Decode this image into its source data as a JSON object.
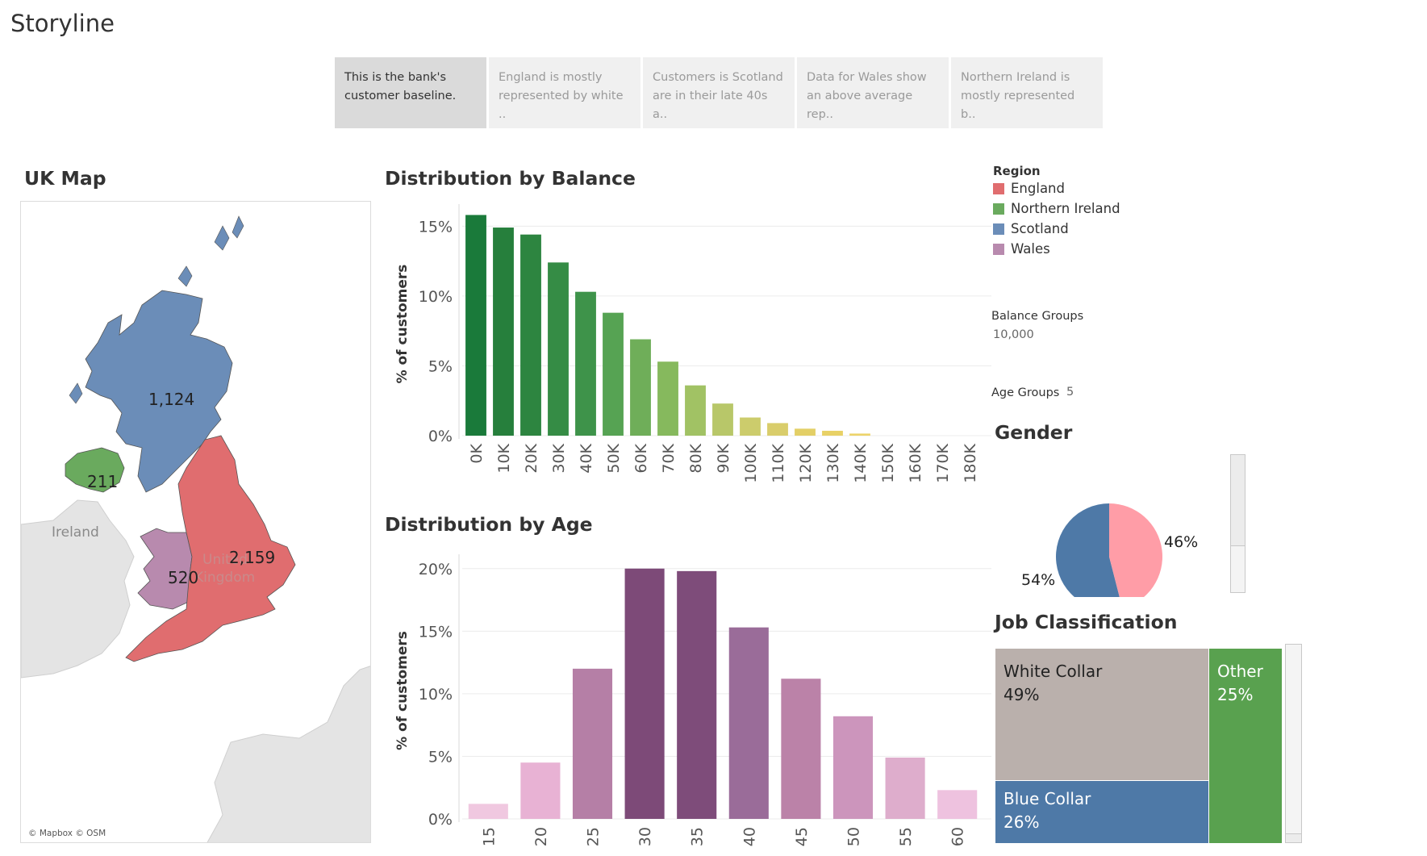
{
  "story": {
    "title": "Storyline",
    "tabs": [
      {
        "label_1": "This is the bank's",
        "label_2": "customer baseline.",
        "active": true
      },
      {
        "label_1": "England is mostly",
        "label_2": "represented by white ..",
        "active": false
      },
      {
        "label_1": "Customers is Scotland",
        "label_2": "are in their late 40s a..",
        "active": false
      },
      {
        "label_1": "Data for Wales show",
        "label_2": "an above average rep..",
        "active": false
      },
      {
        "label_1": "Northern Ireland is",
        "label_2": "mostly  represented b..",
        "active": false
      }
    ]
  },
  "map": {
    "title": "UK Map",
    "attribution": "© Mapbox © OSM",
    "background_labels": {
      "ireland": "Ireland",
      "uk_line1": "United",
      "uk_line2": "Kingdom"
    },
    "region_values": {
      "scotland": "1,124",
      "northern_ireland": "211",
      "england": "2,159",
      "wales": "520"
    }
  },
  "colors": {
    "england": "#e06d6f",
    "northern_ireland": "#6aaa5e",
    "scotland": "#6b8db8",
    "wales": "#b88aae",
    "land_bg": "#e4e4e4",
    "male": "#4e79a7",
    "female": "#ff9da7",
    "white_collar": "#bab0ac",
    "blue_collar": "#4e79a7",
    "other": "#59a14f"
  },
  "legend": {
    "title": "Region",
    "items": [
      {
        "label": "England",
        "color": "#e06d6f"
      },
      {
        "label": "Northern Ireland",
        "color": "#6aaa5e"
      },
      {
        "label": "Scotland",
        "color": "#6b8db8"
      },
      {
        "label": "Wales",
        "color": "#b88aae"
      }
    ]
  },
  "params": {
    "balance_label": "Balance Groups",
    "balance_value": "10,000",
    "age_label": "Age Groups",
    "age_value": "5"
  },
  "gender": {
    "title": "Gender",
    "male_label": "54%",
    "female_label": "46%"
  },
  "jobs": {
    "title": "Job Classification",
    "white_collar": {
      "name": "White Collar",
      "pct": "49%"
    },
    "blue_collar": {
      "name": "Blue Collar",
      "pct": "26%"
    },
    "other": {
      "name": "Other",
      "pct": "25%"
    }
  },
  "chart_data": [
    {
      "type": "bar",
      "title": "Distribution by Balance",
      "ylabel": "% of customers",
      "xlabel": "",
      "categories": [
        "0K",
        "10K",
        "20K",
        "30K",
        "40K",
        "50K",
        "60K",
        "70K",
        "80K",
        "90K",
        "100K",
        "110K",
        "120K",
        "130K",
        "140K",
        "150K",
        "160K",
        "170K",
        "180K"
      ],
      "values": [
        15.8,
        14.9,
        14.4,
        12.4,
        10.3,
        8.8,
        6.9,
        5.3,
        3.6,
        2.3,
        1.3,
        0.9,
        0.5,
        0.35,
        0.15,
        0,
        0,
        0,
        0
      ],
      "y_ticks": [
        "0%",
        "5%",
        "10%",
        "15%"
      ],
      "ylim": [
        0,
        16
      ],
      "grid": true,
      "colors": [
        "#1a7a3a",
        "#267f3c",
        "#2d8540",
        "#358c45",
        "#3e934a",
        "#56a353",
        "#6fae59",
        "#86b95d",
        "#a1c264",
        "#b8c769",
        "#cccc6c",
        "#d9cd6b",
        "#e3cf66",
        "#e8d166",
        "#ecd36a",
        "#eed770",
        "#eed770",
        "#eed770",
        "#eed770"
      ]
    },
    {
      "type": "bar",
      "title": "Distribution by Age",
      "ylabel": "% of customers",
      "xlabel": "",
      "categories": [
        "15",
        "20",
        "25",
        "30",
        "35",
        "40",
        "45",
        "50",
        "55",
        "60"
      ],
      "values": [
        1.2,
        4.5,
        12.0,
        20.0,
        19.8,
        15.3,
        11.2,
        8.2,
        4.9,
        2.3
      ],
      "y_ticks": [
        "0%",
        "5%",
        "10%",
        "15%",
        "20%"
      ],
      "ylim": [
        0,
        20.5
      ],
      "grid": true,
      "colors": [
        "#f0c8e0",
        "#e8b2d4",
        "#b57fa6",
        "#7d4a78",
        "#7e4c7a",
        "#9a6c99",
        "#bb82a8",
        "#cc95bc",
        "#deadcc",
        "#eec2df"
      ]
    },
    {
      "type": "pie",
      "title": "Gender",
      "slices": [
        {
          "value": 54,
          "label": "54%",
          "color": "#4e79a7"
        },
        {
          "value": 46,
          "label": "46%",
          "color": "#ff9da7"
        }
      ]
    },
    {
      "type": "treemap",
      "title": "Job Classification",
      "items": [
        {
          "name": "White Collar",
          "value": 49,
          "color": "#bab0ac"
        },
        {
          "name": "Blue Collar",
          "value": 26,
          "color": "#4e79a7"
        },
        {
          "name": "Other",
          "value": 25,
          "color": "#59a14f"
        }
      ]
    }
  ]
}
